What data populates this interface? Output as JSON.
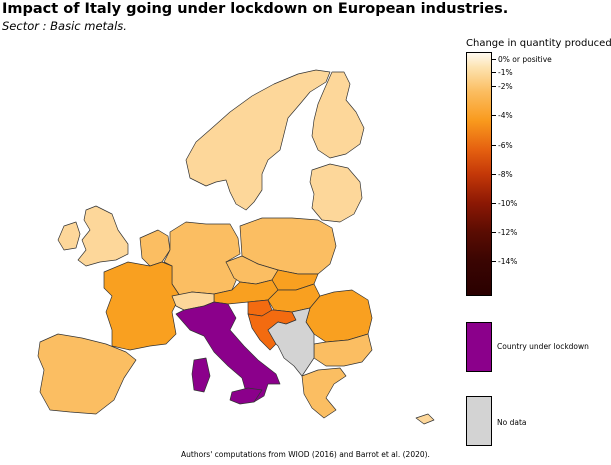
{
  "title": "Impact of Italy going under lockdown on European industries.",
  "subtitle": "Sector : Basic metals.",
  "legend": {
    "title": "Change in quantity produced",
    "ticks": [
      "0% or positive",
      "-1%",
      "-2%",
      "-4%",
      "-6%",
      "-8%",
      "-10%",
      "-12%",
      "-14%"
    ],
    "categories": [
      {
        "label": "Country under lockdown",
        "color": "#8b008b"
      },
      {
        "label": "No data",
        "color": "#d3d3d3"
      }
    ]
  },
  "colors": {
    "light": "#fdd79a",
    "medium": "#fbbe62",
    "strong": "#f9a020",
    "severe": "#f36b10",
    "lockdown": "#8b008b",
    "nodata": "#d3d3d3",
    "border": "#333333"
  },
  "regions": [
    {
      "id": "scandinavia",
      "name": "Scandinavia",
      "level": "light"
    },
    {
      "id": "finland",
      "name": "Finland",
      "level": "light"
    },
    {
      "id": "baltics",
      "name": "Baltic states",
      "level": "light"
    },
    {
      "id": "uk",
      "name": "United Kingdom",
      "level": "light"
    },
    {
      "id": "ireland",
      "name": "Ireland",
      "level": "light"
    },
    {
      "id": "benelux",
      "name": "Benelux",
      "level": "medium"
    },
    {
      "id": "germany",
      "name": "Germany",
      "level": "medium"
    },
    {
      "id": "poland",
      "name": "Poland",
      "level": "medium"
    },
    {
      "id": "czechia",
      "name": "Czechia",
      "level": "medium"
    },
    {
      "id": "slovakia",
      "name": "Slovakia",
      "level": "strong"
    },
    {
      "id": "austria",
      "name": "Austria",
      "level": "strong"
    },
    {
      "id": "hungary",
      "name": "Hungary",
      "level": "strong"
    },
    {
      "id": "slovenia",
      "name": "Slovenia",
      "level": "severe"
    },
    {
      "id": "croatia",
      "name": "Croatia",
      "level": "severe"
    },
    {
      "id": "romania",
      "name": "Romania",
      "level": "strong"
    },
    {
      "id": "bulgaria",
      "name": "Bulgaria",
      "level": "medium"
    },
    {
      "id": "greece",
      "name": "Greece",
      "level": "medium"
    },
    {
      "id": "cyprus",
      "name": "Cyprus",
      "level": "light"
    },
    {
      "id": "france",
      "name": "France",
      "level": "strong"
    },
    {
      "id": "iberia",
      "name": "Spain and Portugal",
      "level": "medium"
    },
    {
      "id": "switzerland",
      "name": "Switzerland",
      "level": "light"
    },
    {
      "id": "italy",
      "name": "Italy",
      "level": "lockdown"
    },
    {
      "id": "sardinia",
      "name": "Sardinia",
      "level": "lockdown"
    },
    {
      "id": "sicily",
      "name": "Sicily",
      "level": "lockdown"
    },
    {
      "id": "western-balkans",
      "name": "Western Balkans",
      "level": "nodata"
    }
  ],
  "source": "Authors' computations from WIOD (2016) and Barrot et al. (2020)."
}
